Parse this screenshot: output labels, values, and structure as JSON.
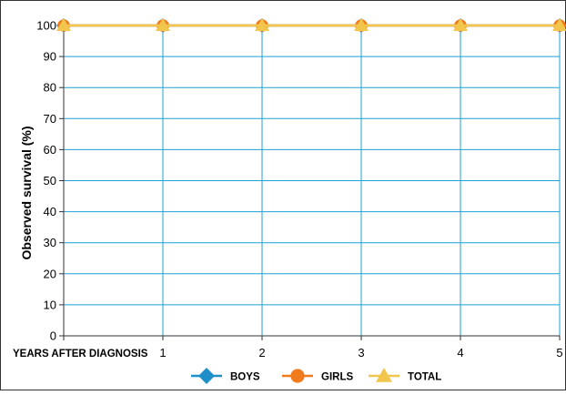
{
  "chart_data": {
    "type": "line",
    "x": [
      0,
      1,
      2,
      3,
      4,
      5
    ],
    "x_tick_labels": [
      "",
      "1",
      "2",
      "3",
      "4",
      "5"
    ],
    "x_first_label": "YEARS AFTER DIAGNOSIS",
    "ylabel": "Observed survival (%)",
    "ylim": [
      0,
      100
    ],
    "y_ticks": [
      0,
      10,
      20,
      30,
      40,
      50,
      60,
      70,
      80,
      90,
      100
    ],
    "grid": true,
    "legend_position": "bottom",
    "series": [
      {
        "name": "BOYS",
        "marker": "diamond",
        "color": "#1f8fc7",
        "values": [
          100,
          100,
          100,
          100,
          100,
          100
        ]
      },
      {
        "name": "GIRLS",
        "marker": "circle",
        "color": "#f07b1c",
        "values": [
          100,
          100,
          100,
          100,
          100,
          100
        ]
      },
      {
        "name": "TOTAL",
        "marker": "triangle",
        "color": "#f2c64c",
        "values": [
          100,
          100,
          100,
          100,
          100,
          100
        ]
      }
    ],
    "colors": {
      "grid": "#1ea1d6",
      "axis": "#333333",
      "frame": "#333333"
    }
  }
}
